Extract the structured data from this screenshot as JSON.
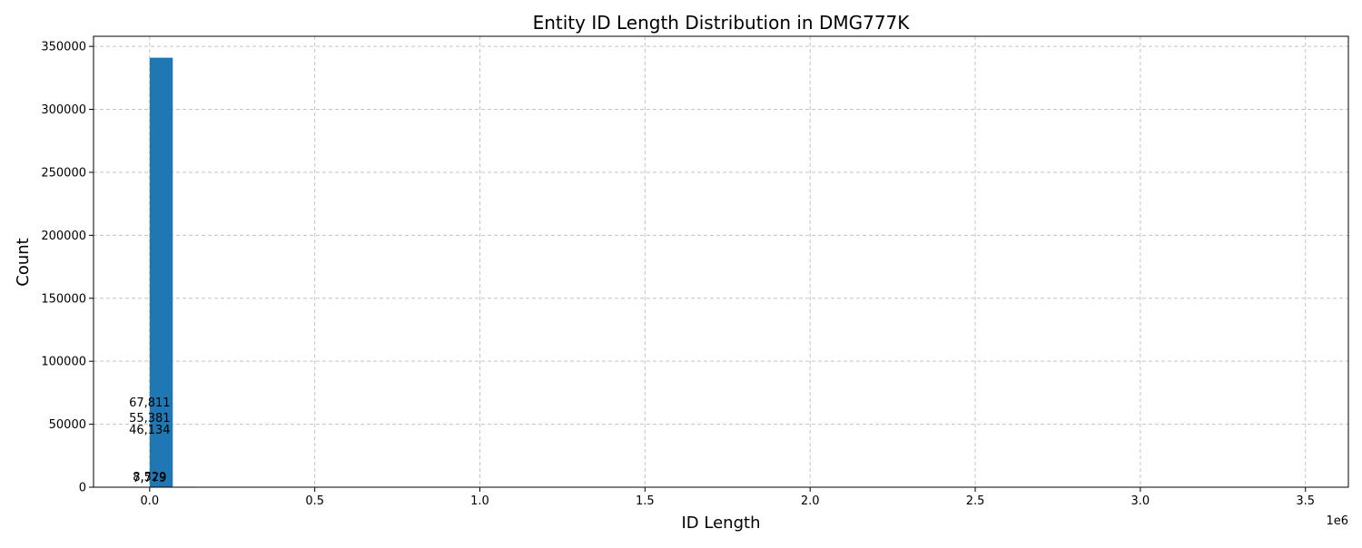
{
  "chart_data": {
    "type": "bar",
    "title": "Entity ID Length Distribution in DMG777K",
    "xlabel": "ID Length",
    "ylabel": "Count",
    "x_offset_label": "1e6",
    "xlim": [
      -170000,
      3630000
    ],
    "ylim": [
      0,
      358000
    ],
    "x_ticks": [
      0,
      500000,
      1000000,
      1500000,
      2000000,
      2500000,
      3000000,
      3500000
    ],
    "x_tick_labels": [
      "0.0",
      "0.5",
      "1.0",
      "1.5",
      "2.0",
      "2.5",
      "3.0",
      "3.5"
    ],
    "y_ticks": [
      0,
      50000,
      100000,
      150000,
      200000,
      250000,
      300000,
      350000
    ],
    "y_tick_labels": [
      "0",
      "50000",
      "100000",
      "150000",
      "200000",
      "250000",
      "300000",
      "350000"
    ],
    "grid": true,
    "bar_color": "#1f77b4",
    "bins": [
      {
        "start": 0,
        "end": 70000,
        "count": 341000
      },
      {
        "start": 70000,
        "end": 140000,
        "count": 400
      }
    ],
    "annotations": [
      {
        "text": "67,811",
        "x": 0,
        "y": 67811
      },
      {
        "text": "55,381",
        "x": 0,
        "y": 55381
      },
      {
        "text": "46,134",
        "x": 0,
        "y": 46134
      },
      {
        "text": "8,529",
        "x": 0,
        "y": 8529
      },
      {
        "text": "7,779",
        "x": 0,
        "y": 7779
      }
    ]
  }
}
